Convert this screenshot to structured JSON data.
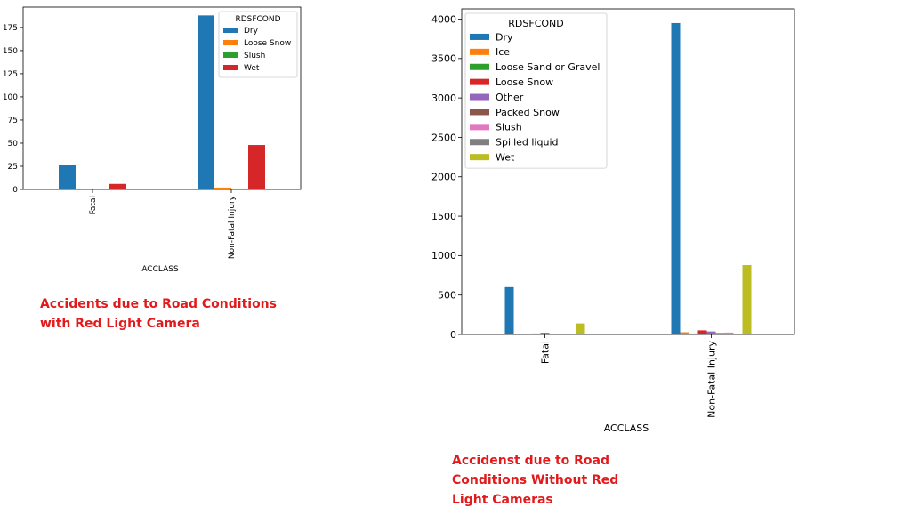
{
  "chart_data": [
    {
      "type": "bar",
      "categories": [
        "Fatal",
        "Non-Fatal Injury"
      ],
      "xlabel": "ACCLASS",
      "ylabel": "",
      "ylim": [
        0,
        197
      ],
      "yticks": [
        0,
        25,
        50,
        75,
        100,
        125,
        150,
        175
      ],
      "legend_title": "RDSFCOND",
      "legend_position": "top-right",
      "grid": false,
      "series": [
        {
          "name": "Dry",
          "color": "#1f77b4",
          "values": [
            26,
            188
          ]
        },
        {
          "name": "Loose Snow",
          "color": "#ff7f0e",
          "values": [
            0,
            2
          ]
        },
        {
          "name": "Slush",
          "color": "#2ca02c",
          "values": [
            0,
            1
          ]
        },
        {
          "name": "Wet",
          "color": "#d62728",
          "values": [
            6,
            48
          ]
        }
      ]
    },
    {
      "type": "bar",
      "categories": [
        "Fatal",
        "Non-Fatal Injury"
      ],
      "xlabel": "ACCLASS",
      "ylabel": "",
      "ylim": [
        0,
        4130
      ],
      "yticks": [
        0,
        500,
        1000,
        1500,
        2000,
        2500,
        3000,
        3500,
        4000
      ],
      "legend_title": "RDSFCOND",
      "legend_position": "top-left",
      "grid": false,
      "series": [
        {
          "name": "Dry",
          "color": "#1f77b4",
          "values": [
            600,
            3950
          ]
        },
        {
          "name": "Ice",
          "color": "#ff7f0e",
          "values": [
            8,
            28
          ]
        },
        {
          "name": "Loose Sand or Gravel",
          "color": "#2ca02c",
          "values": [
            2,
            12
          ]
        },
        {
          "name": "Loose Snow",
          "color": "#d62728",
          "values": [
            12,
            52
          ]
        },
        {
          "name": "Other",
          "color": "#9467bd",
          "values": [
            22,
            38
          ]
        },
        {
          "name": "Packed Snow",
          "color": "#8c564b",
          "values": [
            10,
            18
          ]
        },
        {
          "name": "Slush",
          "color": "#e377c2",
          "values": [
            4,
            24
          ]
        },
        {
          "name": "Spilled liquid",
          "color": "#7f7f7f",
          "values": [
            0,
            2
          ]
        },
        {
          "name": "Wet",
          "color": "#bcbd22",
          "values": [
            140,
            880
          ]
        }
      ]
    }
  ],
  "captions": {
    "left": "Accidents due to Road Conditions with Red Light Camera",
    "right": "Accidenst due to Road Conditions Without Red Light Cameras"
  }
}
